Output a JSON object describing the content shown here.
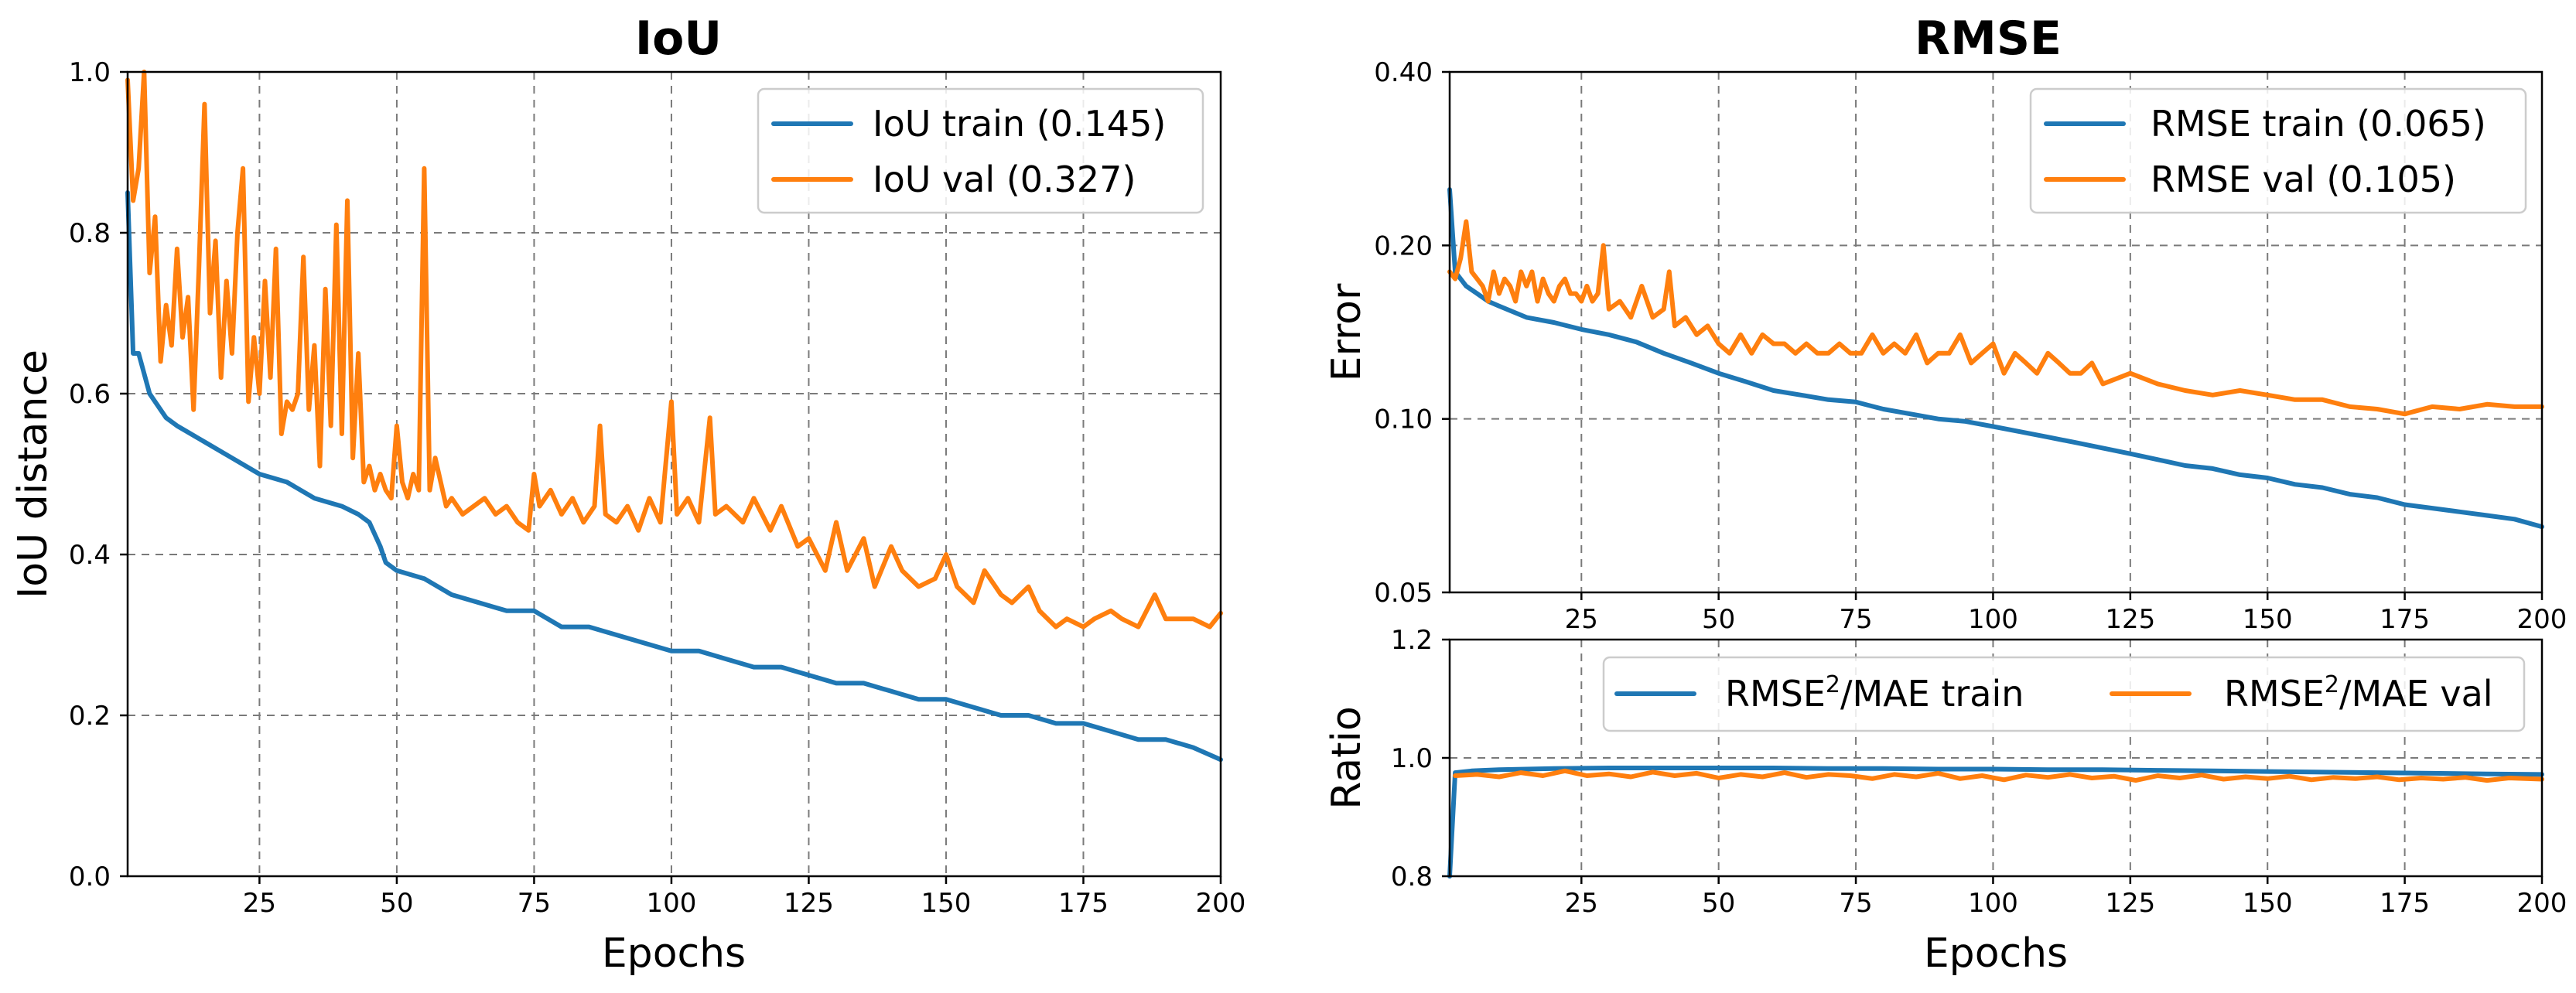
{
  "colors": {
    "train": "#1f77b4",
    "val": "#ff7f0e"
  },
  "chart_data": [
    {
      "id": "iou",
      "type": "line",
      "title": "IoU",
      "xlabel": "Epochs",
      "ylabel": "IoU distance",
      "xlim": [
        1,
        200
      ],
      "ylim": [
        0.0,
        1.0
      ],
      "yscale": "linear",
      "xticks": [
        25,
        50,
        75,
        100,
        125,
        150,
        175,
        200
      ],
      "yticks": [
        0.0,
        0.2,
        0.4,
        0.6,
        0.8,
        1.0
      ],
      "ytick_labels": [
        "0.0",
        "0.2",
        "0.4",
        "0.6",
        "0.8",
        "1.0"
      ],
      "legend_position": "upper-right",
      "series": [
        {
          "name": "IoU train (0.145)",
          "color_key": "train",
          "x": [
            1,
            2,
            3,
            5,
            8,
            10,
            15,
            20,
            25,
            30,
            35,
            40,
            43,
            45,
            47,
            48,
            50,
            55,
            60,
            65,
            70,
            75,
            80,
            85,
            90,
            95,
            100,
            105,
            110,
            115,
            120,
            125,
            130,
            135,
            140,
            145,
            150,
            155,
            160,
            165,
            170,
            175,
            180,
            185,
            190,
            195,
            200
          ],
          "y": [
            0.85,
            0.65,
            0.65,
            0.6,
            0.57,
            0.56,
            0.54,
            0.52,
            0.5,
            0.49,
            0.47,
            0.46,
            0.45,
            0.44,
            0.41,
            0.39,
            0.38,
            0.37,
            0.35,
            0.34,
            0.33,
            0.33,
            0.31,
            0.31,
            0.3,
            0.29,
            0.28,
            0.28,
            0.27,
            0.26,
            0.26,
            0.25,
            0.24,
            0.24,
            0.23,
            0.22,
            0.22,
            0.21,
            0.2,
            0.2,
            0.19,
            0.19,
            0.18,
            0.17,
            0.17,
            0.16,
            0.145
          ]
        },
        {
          "name": "IoU val (0.327)",
          "color_key": "val",
          "x": [
            1,
            2,
            3,
            4,
            5,
            6,
            7,
            8,
            9,
            10,
            11,
            12,
            13,
            14,
            15,
            16,
            17,
            18,
            19,
            20,
            21,
            22,
            23,
            24,
            25,
            26,
            27,
            28,
            29,
            30,
            31,
            32,
            33,
            34,
            35,
            36,
            37,
            38,
            39,
            40,
            41,
            42,
            43,
            44,
            45,
            46,
            47,
            48,
            49,
            50,
            51,
            52,
            53,
            54,
            55,
            56,
            57,
            58,
            59,
            60,
            62,
            64,
            66,
            68,
            70,
            72,
            74,
            75,
            76,
            78,
            80,
            82,
            84,
            86,
            87,
            88,
            90,
            92,
            94,
            96,
            98,
            100,
            101,
            103,
            105,
            107,
            108,
            110,
            113,
            115,
            118,
            120,
            123,
            125,
            128,
            130,
            132,
            135,
            137,
            140,
            142,
            145,
            148,
            150,
            152,
            155,
            157,
            160,
            162,
            165,
            167,
            170,
            172,
            175,
            177,
            180,
            182,
            185,
            188,
            190,
            193,
            195,
            198,
            200
          ],
          "y": [
            0.99,
            0.84,
            0.88,
            1.0,
            0.75,
            0.82,
            0.64,
            0.71,
            0.66,
            0.78,
            0.67,
            0.72,
            0.58,
            0.76,
            0.96,
            0.7,
            0.79,
            0.62,
            0.74,
            0.65,
            0.8,
            0.88,
            0.59,
            0.67,
            0.6,
            0.74,
            0.62,
            0.78,
            0.55,
            0.59,
            0.58,
            0.6,
            0.77,
            0.58,
            0.66,
            0.51,
            0.73,
            0.56,
            0.81,
            0.55,
            0.84,
            0.52,
            0.65,
            0.49,
            0.51,
            0.48,
            0.5,
            0.48,
            0.47,
            0.56,
            0.49,
            0.47,
            0.5,
            0.48,
            0.88,
            0.48,
            0.52,
            0.49,
            0.46,
            0.47,
            0.45,
            0.46,
            0.47,
            0.45,
            0.46,
            0.44,
            0.43,
            0.5,
            0.46,
            0.48,
            0.45,
            0.47,
            0.44,
            0.46,
            0.56,
            0.45,
            0.44,
            0.46,
            0.43,
            0.47,
            0.44,
            0.59,
            0.45,
            0.47,
            0.44,
            0.57,
            0.45,
            0.46,
            0.44,
            0.47,
            0.43,
            0.46,
            0.41,
            0.42,
            0.38,
            0.44,
            0.38,
            0.42,
            0.36,
            0.41,
            0.38,
            0.36,
            0.37,
            0.4,
            0.36,
            0.34,
            0.38,
            0.35,
            0.34,
            0.36,
            0.33,
            0.31,
            0.32,
            0.31,
            0.32,
            0.33,
            0.32,
            0.31,
            0.35,
            0.32,
            0.32,
            0.32,
            0.31,
            0.327
          ]
        }
      ]
    },
    {
      "id": "rmse",
      "type": "line",
      "title": "RMSE",
      "xlabel": "",
      "ylabel": "Error",
      "xlim": [
        1,
        200
      ],
      "ylim": [
        0.05,
        0.4
      ],
      "yscale": "log",
      "xticks": [
        25,
        50,
        75,
        100,
        125,
        150,
        175,
        200
      ],
      "yticks": [
        0.05,
        0.1,
        0.2,
        0.4
      ],
      "ytick_labels": [
        "0.05",
        "0.10",
        "0.20",
        "0.40"
      ],
      "legend_position": "upper-right",
      "series": [
        {
          "name": "RMSE train (0.065)",
          "color_key": "train",
          "x": [
            1,
            2,
            4,
            6,
            8,
            10,
            15,
            20,
            25,
            30,
            35,
            40,
            45,
            50,
            55,
            60,
            65,
            70,
            75,
            80,
            85,
            90,
            95,
            100,
            105,
            110,
            115,
            120,
            125,
            130,
            135,
            140,
            145,
            150,
            155,
            160,
            165,
            170,
            175,
            180,
            185,
            190,
            195,
            200
          ],
          "y": [
            0.25,
            0.18,
            0.17,
            0.165,
            0.16,
            0.157,
            0.15,
            0.147,
            0.143,
            0.14,
            0.136,
            0.13,
            0.125,
            0.12,
            0.116,
            0.112,
            0.11,
            0.108,
            0.107,
            0.104,
            0.102,
            0.1,
            0.099,
            0.097,
            0.095,
            0.093,
            0.091,
            0.089,
            0.087,
            0.085,
            0.083,
            0.082,
            0.08,
            0.079,
            0.077,
            0.076,
            0.074,
            0.073,
            0.071,
            0.07,
            0.069,
            0.068,
            0.067,
            0.065
          ]
        },
        {
          "name": "RMSE val (0.105)",
          "color_key": "val",
          "x": [
            1,
            2,
            3,
            4,
            5,
            6,
            7,
            8,
            9,
            10,
            11,
            12,
            13,
            14,
            15,
            16,
            17,
            18,
            19,
            20,
            21,
            22,
            23,
            24,
            25,
            26,
            27,
            28,
            29,
            30,
            32,
            34,
            36,
            38,
            40,
            41,
            42,
            44,
            46,
            48,
            50,
            52,
            54,
            56,
            58,
            60,
            62,
            64,
            66,
            68,
            70,
            72,
            74,
            76,
            78,
            80,
            82,
            84,
            86,
            88,
            90,
            92,
            94,
            96,
            98,
            100,
            102,
            104,
            106,
            108,
            110,
            112,
            114,
            116,
            118,
            120,
            125,
            130,
            135,
            140,
            145,
            150,
            155,
            160,
            165,
            170,
            175,
            180,
            185,
            190,
            195,
            200
          ],
          "y": [
            0.18,
            0.175,
            0.19,
            0.22,
            0.18,
            0.175,
            0.17,
            0.16,
            0.18,
            0.165,
            0.175,
            0.17,
            0.16,
            0.18,
            0.17,
            0.18,
            0.16,
            0.175,
            0.165,
            0.16,
            0.17,
            0.175,
            0.165,
            0.165,
            0.16,
            0.17,
            0.16,
            0.165,
            0.2,
            0.155,
            0.16,
            0.15,
            0.17,
            0.15,
            0.155,
            0.18,
            0.145,
            0.15,
            0.14,
            0.145,
            0.135,
            0.13,
            0.14,
            0.13,
            0.14,
            0.135,
            0.135,
            0.13,
            0.135,
            0.13,
            0.13,
            0.135,
            0.13,
            0.13,
            0.14,
            0.13,
            0.135,
            0.13,
            0.14,
            0.125,
            0.13,
            0.13,
            0.14,
            0.125,
            0.13,
            0.135,
            0.12,
            0.13,
            0.125,
            0.12,
            0.13,
            0.125,
            0.12,
            0.12,
            0.125,
            0.115,
            0.12,
            0.115,
            0.112,
            0.11,
            0.112,
            0.11,
            0.108,
            0.108,
            0.105,
            0.104,
            0.102,
            0.105,
            0.104,
            0.106,
            0.105,
            0.105
          ]
        }
      ]
    },
    {
      "id": "ratio",
      "type": "line",
      "title": "",
      "xlabel": "Epochs",
      "ylabel": "Ratio",
      "xlim": [
        1,
        200
      ],
      "ylim": [
        0.8,
        1.2
      ],
      "yscale": "linear",
      "xticks": [
        25,
        50,
        75,
        100,
        125,
        150,
        175,
        200
      ],
      "yticks": [
        0.8,
        1.0,
        1.2
      ],
      "ytick_labels": [
        "0.8",
        "1.0",
        "1.2"
      ],
      "legend_position": "top-center",
      "series": [
        {
          "name": "RMSE²/MAE train",
          "name_base": "RMSE",
          "name_sup": "2",
          "name_tail": "/MAE train",
          "color_key": "train",
          "x": [
            1,
            2,
            5,
            10,
            20,
            30,
            40,
            50,
            60,
            70,
            80,
            90,
            100,
            110,
            120,
            130,
            140,
            150,
            160,
            170,
            180,
            190,
            200
          ],
          "y": [
            0.8,
            0.975,
            0.978,
            0.98,
            0.982,
            0.983,
            0.983,
            0.983,
            0.983,
            0.982,
            0.982,
            0.981,
            0.981,
            0.98,
            0.98,
            0.979,
            0.978,
            0.977,
            0.976,
            0.975,
            0.974,
            0.973,
            0.972
          ]
        },
        {
          "name": "RMSE²/MAE val",
          "name_base": "RMSE",
          "name_sup": "2",
          "name_tail": "/MAE val",
          "color_key": "val",
          "x": [
            2,
            6,
            10,
            14,
            18,
            22,
            26,
            30,
            34,
            38,
            42,
            46,
            50,
            54,
            58,
            62,
            66,
            70,
            74,
            78,
            82,
            86,
            90,
            94,
            98,
            102,
            106,
            110,
            114,
            118,
            122,
            126,
            130,
            134,
            138,
            142,
            146,
            150,
            154,
            158,
            162,
            166,
            170,
            174,
            178,
            182,
            186,
            190,
            194,
            200
          ],
          "y": [
            0.97,
            0.972,
            0.968,
            0.975,
            0.97,
            0.978,
            0.97,
            0.973,
            0.968,
            0.976,
            0.97,
            0.974,
            0.966,
            0.972,
            0.968,
            0.975,
            0.967,
            0.972,
            0.97,
            0.965,
            0.972,
            0.968,
            0.974,
            0.965,
            0.97,
            0.963,
            0.971,
            0.967,
            0.972,
            0.966,
            0.969,
            0.962,
            0.97,
            0.966,
            0.971,
            0.964,
            0.968,
            0.965,
            0.969,
            0.963,
            0.967,
            0.965,
            0.968,
            0.963,
            0.966,
            0.964,
            0.967,
            0.962,
            0.966,
            0.964
          ]
        }
      ]
    }
  ]
}
